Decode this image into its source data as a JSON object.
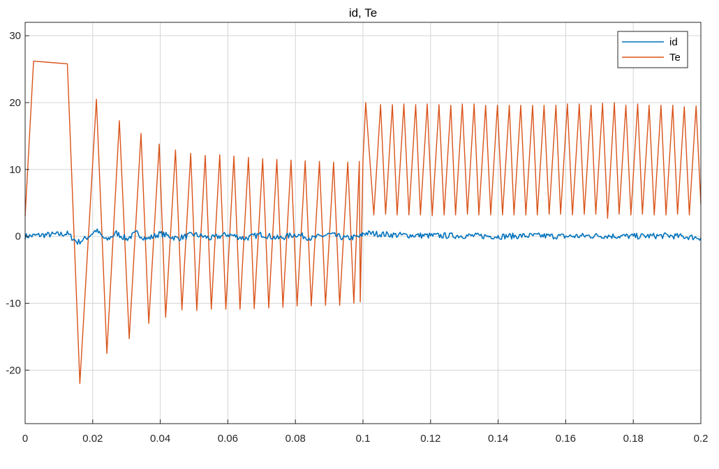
{
  "chart_data": {
    "type": "line",
    "title": "id, Te",
    "xlabel": "",
    "ylabel": "",
    "xlim": [
      0,
      0.2
    ],
    "ylim": [
      -28,
      32
    ],
    "x_ticks": [
      0,
      0.02,
      0.04,
      0.06,
      0.08,
      0.1,
      0.12,
      0.14,
      0.16,
      0.18,
      0.2
    ],
    "x_tick_labels": [
      "0",
      "0.02",
      "0.04",
      "0.06",
      "0.08",
      "0.1",
      "0.12",
      "0.14",
      "0.16",
      "0.18",
      "0.2"
    ],
    "y_ticks": [
      -20,
      -10,
      0,
      10,
      20,
      30
    ],
    "y_tick_labels": [
      "-20",
      "-10",
      "0",
      "10",
      "20",
      "30"
    ],
    "grid": true,
    "legend_position": "top-right",
    "series": [
      {
        "name": "id",
        "color": "#0072BD",
        "style": "noisy line around 0",
        "points": [
          [
            0,
            0
          ],
          [
            0.005,
            0.2
          ],
          [
            0.01,
            0.3
          ],
          [
            0.0125,
            0.4
          ],
          [
            0.0155,
            -0.9
          ],
          [
            0.018,
            -0.3
          ],
          [
            0.021,
            0.9
          ],
          [
            0.024,
            -0.6
          ],
          [
            0.027,
            0.5
          ],
          [
            0.03,
            -0.4
          ],
          [
            0.033,
            0.5
          ],
          [
            0.036,
            -0.4
          ],
          [
            0.04,
            0.4
          ],
          [
            0.045,
            -0.3
          ],
          [
            0.05,
            0.3
          ],
          [
            0.055,
            -0.3
          ],
          [
            0.06,
            0.3
          ],
          [
            0.065,
            -0.3
          ],
          [
            0.07,
            0.3
          ],
          [
            0.075,
            -0.3
          ],
          [
            0.08,
            0.3
          ],
          [
            0.085,
            -0.3
          ],
          [
            0.09,
            0.3
          ],
          [
            0.095,
            -0.3
          ],
          [
            0.0995,
            0
          ],
          [
            0.1,
            0.5
          ],
          [
            0.11,
            0.2
          ],
          [
            0.12,
            0.1
          ],
          [
            0.13,
            0.1
          ],
          [
            0.14,
            0
          ],
          [
            0.15,
            0.1
          ],
          [
            0.16,
            0
          ],
          [
            0.17,
            0.1
          ],
          [
            0.18,
            0
          ],
          [
            0.19,
            0.1
          ],
          [
            0.2,
            -0.2
          ]
        ]
      },
      {
        "name": "Te",
        "color": "#D95319",
        "style": "oscillating sawtooth",
        "points": [
          [
            0,
            3
          ],
          [
            0.0025,
            26.2
          ],
          [
            0.0075,
            26
          ],
          [
            0.0125,
            25.8
          ],
          [
            0.0162,
            -22
          ],
          [
            0.0211,
            20.5
          ],
          [
            0.0242,
            -17.5
          ],
          [
            0.0279,
            17.3
          ],
          [
            0.0308,
            -15.3
          ],
          [
            0.0343,
            15.4
          ],
          [
            0.0366,
            -13
          ],
          [
            0.0397,
            13.8
          ],
          [
            0.0416,
            -12.1
          ],
          [
            0.0445,
            12.9
          ],
          [
            0.0464,
            -11
          ],
          [
            0.049,
            12.4
          ],
          [
            0.0508,
            -11.1
          ],
          [
            0.0533,
            12.1
          ],
          [
            0.0551,
            -10.9
          ],
          [
            0.0576,
            12.2
          ],
          [
            0.0594,
            -10.9
          ],
          [
            0.0618,
            12.0
          ],
          [
            0.0636,
            -10.9
          ],
          [
            0.0661,
            11.8
          ],
          [
            0.0678,
            -10.8
          ],
          [
            0.0703,
            11.6
          ],
          [
            0.0721,
            -10.7
          ],
          [
            0.0745,
            11.5
          ],
          [
            0.0763,
            -10.6
          ],
          [
            0.0787,
            11.4
          ],
          [
            0.0805,
            -10.4
          ],
          [
            0.0829,
            11.3
          ],
          [
            0.0847,
            -10.4
          ],
          [
            0.0871,
            11.2
          ],
          [
            0.0889,
            -10.3
          ],
          [
            0.0913,
            11.1
          ],
          [
            0.0931,
            -10.3
          ],
          [
            0.0955,
            11.1
          ],
          [
            0.0973,
            -10.0
          ],
          [
            0.0989,
            11.2
          ],
          [
            0.0992,
            -9.8
          ],
          [
            0.1,
            11.5
          ],
          [
            0.1008,
            20.0
          ],
          [
            0.1032,
            3.2
          ],
          [
            0.1052,
            19.7
          ],
          [
            0.1067,
            3.3
          ],
          [
            0.1087,
            19.7
          ],
          [
            0.1101,
            3.2
          ],
          [
            0.1121,
            19.8
          ],
          [
            0.1136,
            3.2
          ],
          [
            0.1156,
            19.7
          ],
          [
            0.117,
            3.2
          ],
          [
            0.119,
            19.8
          ],
          [
            0.1205,
            3.1
          ],
          [
            0.1225,
            19.7
          ],
          [
            0.124,
            3.2
          ],
          [
            0.126,
            19.6
          ],
          [
            0.1274,
            3.2
          ],
          [
            0.1294,
            19.8
          ],
          [
            0.1309,
            3.3
          ],
          [
            0.1329,
            19.8
          ],
          [
            0.1343,
            3.2
          ],
          [
            0.1363,
            19.6
          ],
          [
            0.1378,
            3.2
          ],
          [
            0.1398,
            19.6
          ],
          [
            0.1413,
            3.2
          ],
          [
            0.1433,
            19.6
          ],
          [
            0.1447,
            3.2
          ],
          [
            0.1467,
            19.6
          ],
          [
            0.1482,
            3.2
          ],
          [
            0.1502,
            19.6
          ],
          [
            0.1516,
            3.2
          ],
          [
            0.1536,
            19.6
          ],
          [
            0.1551,
            3.3
          ],
          [
            0.1571,
            19.6
          ],
          [
            0.1585,
            3.3
          ],
          [
            0.1605,
            19.8
          ],
          [
            0.162,
            3.2
          ],
          [
            0.164,
            19.8
          ],
          [
            0.1655,
            3.3
          ],
          [
            0.1675,
            19.6
          ],
          [
            0.1689,
            3.3
          ],
          [
            0.1709,
            19.9
          ],
          [
            0.1724,
            2.7
          ],
          [
            0.1744,
            20.0
          ],
          [
            0.1758,
            3.3
          ],
          [
            0.1778,
            19.6
          ],
          [
            0.1793,
            3.2
          ],
          [
            0.1813,
            19.8
          ],
          [
            0.1827,
            3.3
          ],
          [
            0.1847,
            19.6
          ],
          [
            0.1862,
            3.2
          ],
          [
            0.1882,
            19.6
          ],
          [
            0.1897,
            3.2
          ],
          [
            0.1917,
            19.6
          ],
          [
            0.1931,
            3.3
          ],
          [
            0.1951,
            19.4
          ],
          [
            0.1966,
            3.2
          ],
          [
            0.1986,
            19.5
          ],
          [
            0.2,
            4.8
          ]
        ]
      }
    ]
  }
}
